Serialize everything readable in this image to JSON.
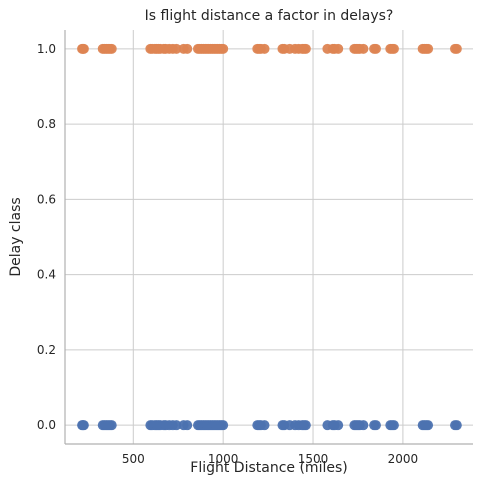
{
  "chart_data": {
    "type": "scatter",
    "title": "Is flight distance a factor in delays?",
    "xlabel": "Flight Distance (miles)",
    "ylabel": "Delay class",
    "xlim": [
      120,
      2390
    ],
    "ylim": [
      -0.05,
      1.05
    ],
    "x_ticks": [
      500,
      1000,
      1500,
      2000
    ],
    "x_tick_labels": [
      "500",
      "1000",
      "1500",
      "2000"
    ],
    "y_ticks": [
      0.0,
      0.2,
      0.4,
      0.6,
      0.8,
      1.0
    ],
    "y_tick_labels": [
      "0.0",
      "0.2",
      "0.4",
      "0.6",
      "0.8",
      "1.0"
    ],
    "grid": true,
    "series": [
      {
        "color": "#4c72b0",
        "y": 0,
        "x": [
          215,
          220,
          225,
          330,
          340,
          350,
          360,
          370,
          380,
          595,
          605,
          620,
          630,
          640,
          650,
          670,
          680,
          700,
          720,
          740,
          780,
          800,
          860,
          870,
          880,
          890,
          900,
          910,
          920,
          930,
          940,
          950,
          960,
          970,
          980,
          990,
          1000,
          1190,
          1200,
          1210,
          1230,
          1330,
          1340,
          1370,
          1400,
          1420,
          1440,
          1450,
          1460,
          1580,
          1610,
          1620,
          1640,
          1730,
          1740,
          1750,
          1760,
          1780,
          1840,
          1850,
          1930,
          1940,
          1950,
          2110,
          2120,
          2130,
          2140,
          2290,
          2300
        ]
      },
      {
        "color": "#dd8452",
        "y": 1,
        "x": [
          215,
          220,
          225,
          330,
          340,
          350,
          360,
          370,
          380,
          595,
          605,
          620,
          630,
          640,
          650,
          670,
          680,
          700,
          720,
          740,
          780,
          800,
          860,
          870,
          880,
          890,
          900,
          910,
          920,
          930,
          940,
          950,
          960,
          970,
          980,
          990,
          1000,
          1190,
          1200,
          1210,
          1230,
          1330,
          1340,
          1370,
          1400,
          1420,
          1440,
          1450,
          1460,
          1580,
          1610,
          1620,
          1640,
          1730,
          1740,
          1750,
          1760,
          1780,
          1840,
          1850,
          1930,
          1940,
          1950,
          2110,
          2120,
          2130,
          2140,
          2290,
          2300
        ]
      }
    ]
  }
}
